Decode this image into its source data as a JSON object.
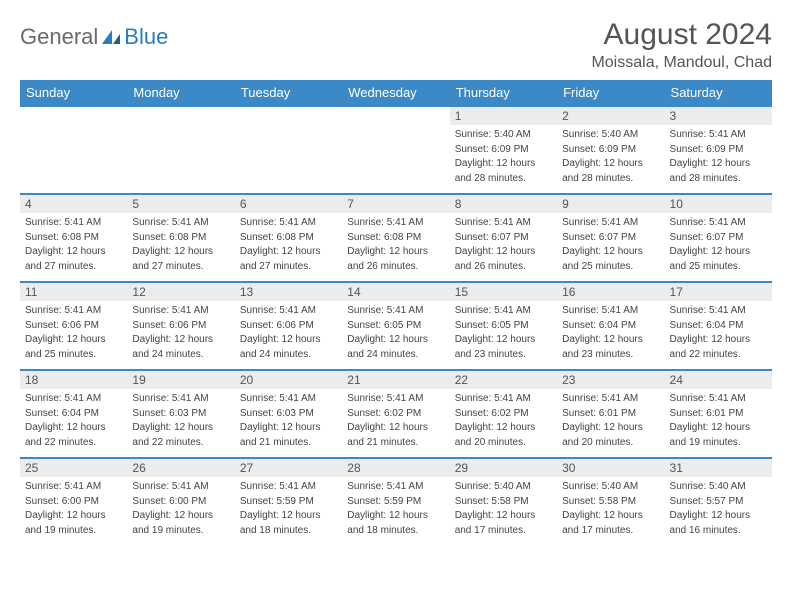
{
  "brand": {
    "general": "General",
    "blue": "Blue"
  },
  "title": "August 2024",
  "location": "Moissala, Mandoul, Chad",
  "colors": {
    "headerBg": "#3b89c7",
    "headerText": "#ffffff",
    "dayNumBg": "#ececec",
    "borderTop": "#3b89c7",
    "bodyText": "#444444"
  },
  "dayNames": [
    "Sunday",
    "Monday",
    "Tuesday",
    "Wednesday",
    "Thursday",
    "Friday",
    "Saturday"
  ],
  "weeks": [
    [
      {
        "n": "",
        "sr": "",
        "ss": "",
        "d1": "",
        "d2": ""
      },
      {
        "n": "",
        "sr": "",
        "ss": "",
        "d1": "",
        "d2": ""
      },
      {
        "n": "",
        "sr": "",
        "ss": "",
        "d1": "",
        "d2": ""
      },
      {
        "n": "",
        "sr": "",
        "ss": "",
        "d1": "",
        "d2": ""
      },
      {
        "n": "1",
        "sr": "Sunrise: 5:40 AM",
        "ss": "Sunset: 6:09 PM",
        "d1": "Daylight: 12 hours",
        "d2": "and 28 minutes."
      },
      {
        "n": "2",
        "sr": "Sunrise: 5:40 AM",
        "ss": "Sunset: 6:09 PM",
        "d1": "Daylight: 12 hours",
        "d2": "and 28 minutes."
      },
      {
        "n": "3",
        "sr": "Sunrise: 5:41 AM",
        "ss": "Sunset: 6:09 PM",
        "d1": "Daylight: 12 hours",
        "d2": "and 28 minutes."
      }
    ],
    [
      {
        "n": "4",
        "sr": "Sunrise: 5:41 AM",
        "ss": "Sunset: 6:08 PM",
        "d1": "Daylight: 12 hours",
        "d2": "and 27 minutes."
      },
      {
        "n": "5",
        "sr": "Sunrise: 5:41 AM",
        "ss": "Sunset: 6:08 PM",
        "d1": "Daylight: 12 hours",
        "d2": "and 27 minutes."
      },
      {
        "n": "6",
        "sr": "Sunrise: 5:41 AM",
        "ss": "Sunset: 6:08 PM",
        "d1": "Daylight: 12 hours",
        "d2": "and 27 minutes."
      },
      {
        "n": "7",
        "sr": "Sunrise: 5:41 AM",
        "ss": "Sunset: 6:08 PM",
        "d1": "Daylight: 12 hours",
        "d2": "and 26 minutes."
      },
      {
        "n": "8",
        "sr": "Sunrise: 5:41 AM",
        "ss": "Sunset: 6:07 PM",
        "d1": "Daylight: 12 hours",
        "d2": "and 26 minutes."
      },
      {
        "n": "9",
        "sr": "Sunrise: 5:41 AM",
        "ss": "Sunset: 6:07 PM",
        "d1": "Daylight: 12 hours",
        "d2": "and 25 minutes."
      },
      {
        "n": "10",
        "sr": "Sunrise: 5:41 AM",
        "ss": "Sunset: 6:07 PM",
        "d1": "Daylight: 12 hours",
        "d2": "and 25 minutes."
      }
    ],
    [
      {
        "n": "11",
        "sr": "Sunrise: 5:41 AM",
        "ss": "Sunset: 6:06 PM",
        "d1": "Daylight: 12 hours",
        "d2": "and 25 minutes."
      },
      {
        "n": "12",
        "sr": "Sunrise: 5:41 AM",
        "ss": "Sunset: 6:06 PM",
        "d1": "Daylight: 12 hours",
        "d2": "and 24 minutes."
      },
      {
        "n": "13",
        "sr": "Sunrise: 5:41 AM",
        "ss": "Sunset: 6:06 PM",
        "d1": "Daylight: 12 hours",
        "d2": "and 24 minutes."
      },
      {
        "n": "14",
        "sr": "Sunrise: 5:41 AM",
        "ss": "Sunset: 6:05 PM",
        "d1": "Daylight: 12 hours",
        "d2": "and 24 minutes."
      },
      {
        "n": "15",
        "sr": "Sunrise: 5:41 AM",
        "ss": "Sunset: 6:05 PM",
        "d1": "Daylight: 12 hours",
        "d2": "and 23 minutes."
      },
      {
        "n": "16",
        "sr": "Sunrise: 5:41 AM",
        "ss": "Sunset: 6:04 PM",
        "d1": "Daylight: 12 hours",
        "d2": "and 23 minutes."
      },
      {
        "n": "17",
        "sr": "Sunrise: 5:41 AM",
        "ss": "Sunset: 6:04 PM",
        "d1": "Daylight: 12 hours",
        "d2": "and 22 minutes."
      }
    ],
    [
      {
        "n": "18",
        "sr": "Sunrise: 5:41 AM",
        "ss": "Sunset: 6:04 PM",
        "d1": "Daylight: 12 hours",
        "d2": "and 22 minutes."
      },
      {
        "n": "19",
        "sr": "Sunrise: 5:41 AM",
        "ss": "Sunset: 6:03 PM",
        "d1": "Daylight: 12 hours",
        "d2": "and 22 minutes."
      },
      {
        "n": "20",
        "sr": "Sunrise: 5:41 AM",
        "ss": "Sunset: 6:03 PM",
        "d1": "Daylight: 12 hours",
        "d2": "and 21 minutes."
      },
      {
        "n": "21",
        "sr": "Sunrise: 5:41 AM",
        "ss": "Sunset: 6:02 PM",
        "d1": "Daylight: 12 hours",
        "d2": "and 21 minutes."
      },
      {
        "n": "22",
        "sr": "Sunrise: 5:41 AM",
        "ss": "Sunset: 6:02 PM",
        "d1": "Daylight: 12 hours",
        "d2": "and 20 minutes."
      },
      {
        "n": "23",
        "sr": "Sunrise: 5:41 AM",
        "ss": "Sunset: 6:01 PM",
        "d1": "Daylight: 12 hours",
        "d2": "and 20 minutes."
      },
      {
        "n": "24",
        "sr": "Sunrise: 5:41 AM",
        "ss": "Sunset: 6:01 PM",
        "d1": "Daylight: 12 hours",
        "d2": "and 19 minutes."
      }
    ],
    [
      {
        "n": "25",
        "sr": "Sunrise: 5:41 AM",
        "ss": "Sunset: 6:00 PM",
        "d1": "Daylight: 12 hours",
        "d2": "and 19 minutes."
      },
      {
        "n": "26",
        "sr": "Sunrise: 5:41 AM",
        "ss": "Sunset: 6:00 PM",
        "d1": "Daylight: 12 hours",
        "d2": "and 19 minutes."
      },
      {
        "n": "27",
        "sr": "Sunrise: 5:41 AM",
        "ss": "Sunset: 5:59 PM",
        "d1": "Daylight: 12 hours",
        "d2": "and 18 minutes."
      },
      {
        "n": "28",
        "sr": "Sunrise: 5:41 AM",
        "ss": "Sunset: 5:59 PM",
        "d1": "Daylight: 12 hours",
        "d2": "and 18 minutes."
      },
      {
        "n": "29",
        "sr": "Sunrise: 5:40 AM",
        "ss": "Sunset: 5:58 PM",
        "d1": "Daylight: 12 hours",
        "d2": "and 17 minutes."
      },
      {
        "n": "30",
        "sr": "Sunrise: 5:40 AM",
        "ss": "Sunset: 5:58 PM",
        "d1": "Daylight: 12 hours",
        "d2": "and 17 minutes."
      },
      {
        "n": "31",
        "sr": "Sunrise: 5:40 AM",
        "ss": "Sunset: 5:57 PM",
        "d1": "Daylight: 12 hours",
        "d2": "and 16 minutes."
      }
    ]
  ]
}
